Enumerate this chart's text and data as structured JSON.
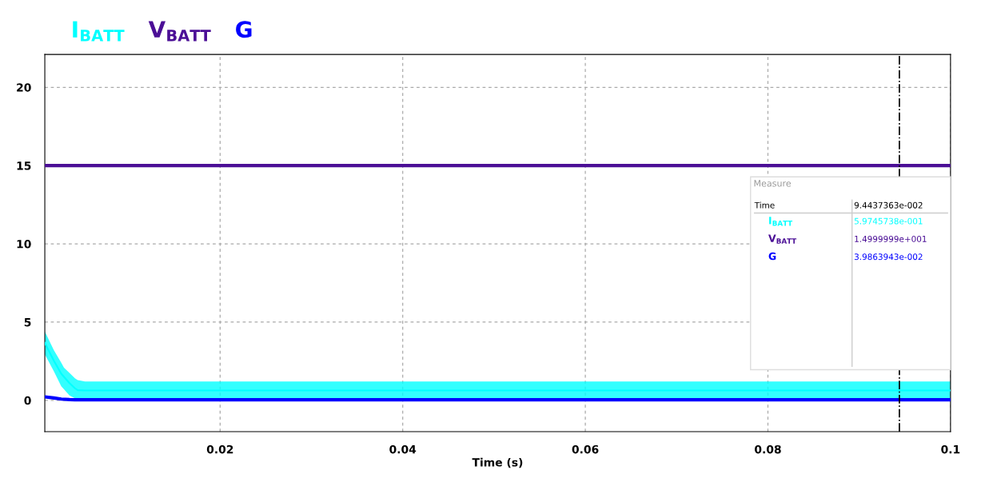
{
  "chart_data": {
    "type": "line",
    "xlabel": "Time (s)",
    "xlim": [
      0.0008,
      0.1
    ],
    "ylim": [
      -2,
      22.1
    ],
    "xticks": [
      0.02,
      0.04,
      0.06,
      0.08,
      0.1
    ],
    "yticks": [
      0,
      5,
      10,
      15,
      20
    ],
    "grid": true,
    "legend": "top left",
    "series": [
      {
        "name": "I$_{BATT}$",
        "color": "#00ffff",
        "x": [
          0.0008,
          0.0018,
          0.0026,
          0.0029,
          0.0035,
          0.0041,
          0.0044,
          0.0052,
          0.1
        ],
        "values": [
          3.67,
          2.52,
          1.7,
          1.5,
          1.1,
          0.77,
          0.65,
          0.63,
          0.63
        ],
        "lower": [
          2.94,
          1.84,
          0.9,
          0.7,
          0.31,
          0.13,
          0.05,
          0.05,
          0.05
        ],
        "upper": [
          4.4,
          3.2,
          2.4,
          2.09,
          1.75,
          1.41,
          1.3,
          1.2,
          1.2
        ]
      },
      {
        "name": "V$_{BATT}$",
        "color": "#4b0f96",
        "x": [
          0.0008,
          0.1
        ],
        "values": [
          15,
          15
        ]
      },
      {
        "name": "G",
        "color": "#0000ff",
        "x": [
          0.0008,
          0.0018,
          0.0026,
          0.0035,
          0.0041,
          0.1
        ],
        "values": [
          0.22,
          0.15,
          0.08,
          0.05,
          0.04,
          0.04
        ]
      }
    ],
    "ref_lines": [
      {
        "axis": "x",
        "value": 0.0944,
        "color": "#000000",
        "line_style": "dashdot"
      }
    ],
    "annotations": [
      "Measure",
      "Time",
      "9.4437363e-002",
      "I$_{BATT}$",
      "5.9745738e-001",
      "V$_{BATT}$",
      "1.4999999e+001",
      "G",
      "3.9863943e-002"
    ]
  }
}
